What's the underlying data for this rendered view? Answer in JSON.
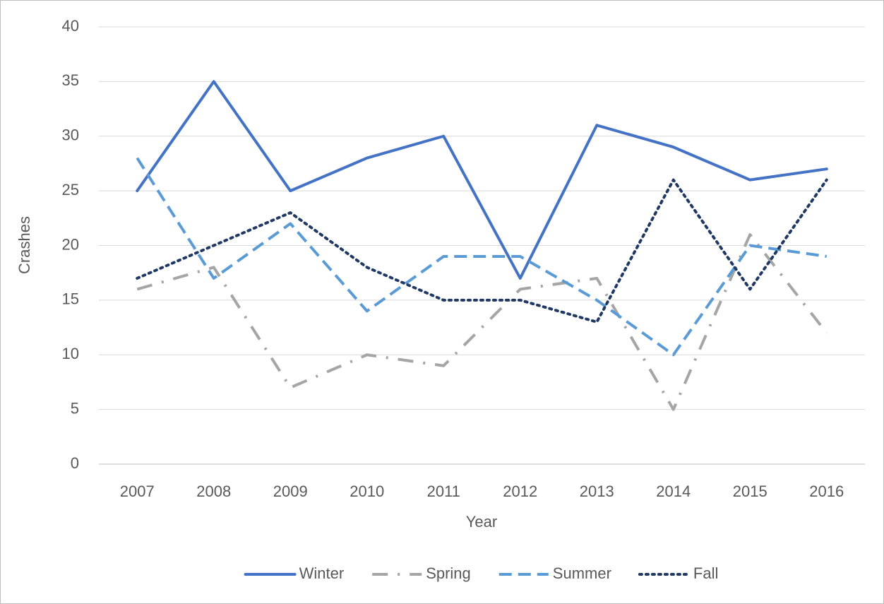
{
  "chart_data": {
    "type": "line",
    "x_label": "Year",
    "y_label": "Crashes",
    "categories": [
      "2007",
      "2008",
      "2009",
      "2010",
      "2011",
      "2012",
      "2013",
      "2014",
      "2015",
      "2016"
    ],
    "series": [
      {
        "name": "Winter",
        "color": "#4472c4",
        "style": "solid",
        "values": [
          25,
          35,
          25,
          28,
          30,
          17,
          31,
          29,
          26,
          27
        ]
      },
      {
        "name": "Spring",
        "color": "#a5a5a5",
        "style": "dashdot",
        "values": [
          16,
          18,
          7,
          10,
          9,
          16,
          17,
          5,
          21,
          12
        ]
      },
      {
        "name": "Summer",
        "color": "#5b9bd5",
        "style": "dashed",
        "values": [
          28,
          17,
          22,
          14,
          19,
          19,
          15,
          10,
          20,
          19
        ]
      },
      {
        "name": "Fall",
        "color": "#203864",
        "style": "dotted",
        "values": [
          17,
          20,
          23,
          18,
          15,
          15,
          13,
          26,
          16,
          26
        ]
      }
    ],
    "ylim": [
      0,
      40
    ],
    "yticks": [
      0,
      5,
      10,
      15,
      20,
      25,
      30,
      35,
      40
    ],
    "grid": true,
    "legend": "bottom"
  }
}
